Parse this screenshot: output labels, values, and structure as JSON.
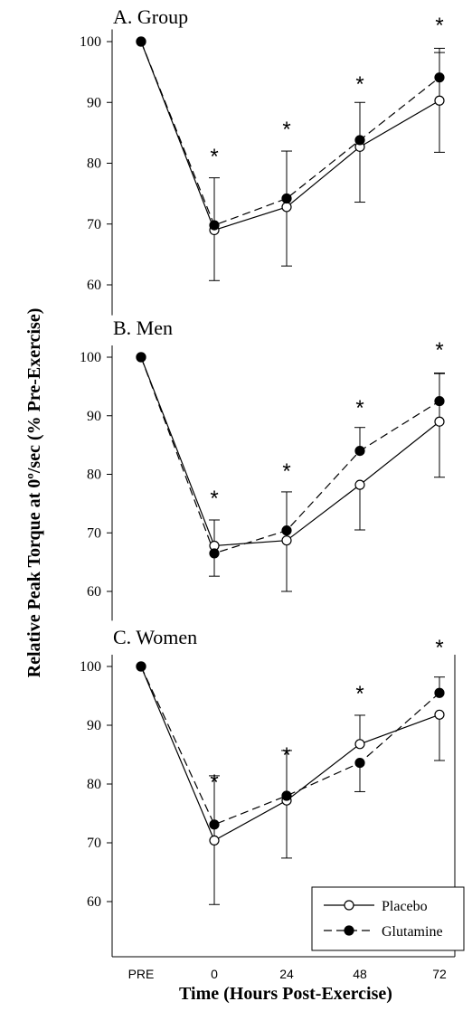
{
  "chart_data": [
    {
      "type": "line",
      "title": "A. Group",
      "x": [
        "PRE",
        "0",
        "24",
        "48",
        "72"
      ],
      "ylim": [
        55,
        102
      ],
      "yticks": [
        60,
        70,
        80,
        90,
        100
      ],
      "series": [
        {
          "name": "Placebo",
          "marker": "open-circle",
          "line": "solid",
          "values": [
            100,
            69,
            72.8,
            82.7,
            90.3
          ],
          "error_upper": [
            0,
            8.6,
            9.2,
            7.3,
            8.6
          ],
          "error_lower": [
            0,
            8.3,
            9.7,
            9.1,
            8.5
          ]
        },
        {
          "name": "Glutamine",
          "marker": "filled-circle",
          "line": "dashed",
          "values": [
            100,
            69.8,
            74.2,
            83.8,
            94.1
          ],
          "error_upper": [
            0,
            0,
            0,
            0,
            4.1
          ],
          "error_lower": [
            0,
            0,
            0,
            0,
            0
          ]
        }
      ],
      "significance": [
        "",
        "*",
        "*",
        "*",
        "*"
      ]
    },
    {
      "type": "line",
      "title": "B. Men",
      "x": [
        "PRE",
        "0",
        "24",
        "48",
        "72"
      ],
      "ylim": [
        55,
        102
      ],
      "yticks": [
        60,
        70,
        80,
        90,
        100
      ],
      "series": [
        {
          "name": "Placebo",
          "marker": "open-circle",
          "line": "solid",
          "values": [
            100,
            67.8,
            68.7,
            78.2,
            89
          ],
          "error_upper": [
            0,
            4.4,
            8.3,
            0,
            8.3
          ],
          "error_lower": [
            0,
            0,
            8.7,
            7.7,
            9.5
          ]
        },
        {
          "name": "Glutamine",
          "marker": "filled-circle",
          "line": "dashed",
          "values": [
            100,
            66.5,
            70.4,
            84,
            92.5
          ],
          "error_upper": [
            0,
            0,
            0,
            4,
            4.7
          ],
          "error_lower": [
            0,
            3.9,
            0,
            0,
            0
          ]
        }
      ],
      "significance": [
        "",
        "*",
        "*",
        "*",
        "*"
      ]
    },
    {
      "type": "line",
      "title": "C. Women",
      "x": [
        "PRE",
        "0",
        "24",
        "48",
        "72"
      ],
      "ylim": [
        55,
        102
      ],
      "yticks": [
        60,
        70,
        80,
        90,
        100
      ],
      "series": [
        {
          "name": "Placebo",
          "marker": "open-circle",
          "line": "solid",
          "values": [
            100,
            70.4,
            77.2,
            86.8,
            91.8
          ],
          "error_upper": [
            0,
            11,
            8.5,
            4.9,
            0
          ],
          "error_lower": [
            0,
            10.9,
            9.8,
            0,
            7.8
          ]
        },
        {
          "name": "Glutamine",
          "marker": "filled-circle",
          "line": "dashed",
          "values": [
            100,
            73.1,
            78,
            83.6,
            95.5
          ],
          "error_upper": [
            0,
            0,
            0,
            0,
            2.7
          ],
          "error_lower": [
            0,
            0,
            0,
            4.9,
            0
          ]
        }
      ],
      "significance": [
        "",
        "*",
        "*",
        "*",
        "*"
      ]
    }
  ],
  "ylabel": "Relative Peak Torque at 0º/sec (% Pre-Exercise)",
  "xlabel": "Time (Hours Post-Exercise)",
  "legend": {
    "placement": "bottom-right",
    "entries": [
      "Placebo",
      "Glutamine"
    ]
  },
  "colors": {
    "line": "#000000",
    "background": "#ffffff"
  }
}
